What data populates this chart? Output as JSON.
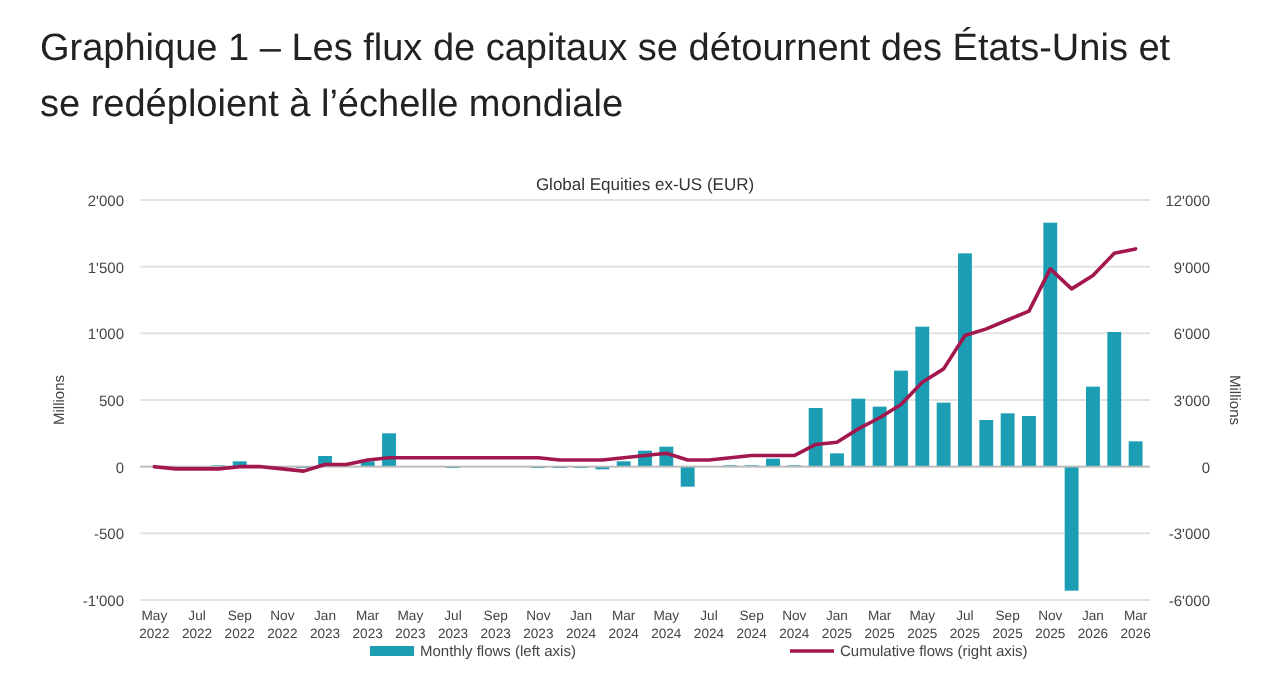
{
  "chart_data": {
    "type": "bar",
    "title": "Graphique 1 – Les flux de capitaux se détournent des États-Unis et se redéploient à l’échelle mondiale",
    "subtitle": "Global Equities ex-US (EUR)",
    "ylabel": "Millions",
    "y2label": "Millions",
    "categories": [
      "May 2022",
      null,
      "Jul 2022",
      null,
      "Sep 2022",
      null,
      "Nov 2022",
      null,
      "Jan 2023",
      null,
      "Mar 2023",
      null,
      "May 2023",
      null,
      "Jul 2023",
      null,
      "Sep 2023",
      null,
      "Nov 2023",
      null,
      "Jan 2024",
      null,
      "Mar 2024",
      null,
      "May 2024",
      null,
      "Jul 2024",
      null,
      "Sep 2024",
      null,
      "Nov 2024",
      null,
      "Jan 2025",
      null,
      "Mar 2025",
      null,
      "May 2025",
      null,
      "Jul 2025",
      null,
      "Sep 2025",
      null,
      "Nov 2025",
      null,
      "Jan 2026",
      null,
      "Mar 2026"
    ],
    "series": [
      {
        "name": "Monthly flows (left axis)",
        "color": "#1b9db3",
        "values": [
          0,
          0,
          null,
          10,
          40,
          null,
          null,
          -10,
          80,
          null,
          40,
          250,
          0,
          0,
          -10,
          0,
          0,
          0,
          -10,
          -10,
          -10,
          -20,
          40,
          120,
          150,
          -150,
          0,
          10,
          10,
          60,
          10,
          440,
          100,
          510,
          450,
          720,
          1050,
          480,
          1600,
          350,
          400,
          380,
          1830,
          -930,
          600,
          1010,
          190
        ]
      },
      {
        "name": "Cumulative flows (right axis)",
        "type": "line",
        "axis": "y2",
        "color": "#a3174f",
        "values": [
          0,
          -100,
          -100,
          -100,
          0,
          0,
          -100,
          -200,
          100,
          100,
          300,
          400,
          400,
          400,
          400,
          400,
          400,
          400,
          400,
          300,
          300,
          300,
          400,
          500,
          600,
          300,
          300,
          400,
          500,
          500,
          500,
          1000,
          1100,
          1700,
          2200,
          2800,
          3800,
          4400,
          5900,
          6200,
          6600,
          7000,
          8900,
          8000,
          8600,
          9600,
          9800
        ]
      }
    ],
    "ylim": [
      -1000,
      2000
    ],
    "yticks": [
      {
        "value": -1000,
        "label": "-1'000"
      },
      -500,
      0,
      500,
      {
        "value": 1000,
        "label": "1'000"
      },
      {
        "value": 1500,
        "label": "1'500"
      },
      {
        "value": 2000,
        "label": "2'000"
      }
    ],
    "y2lim": [
      -6000,
      12000
    ],
    "y2ticks": [
      {
        "value": -6000,
        "label": "-6'000"
      },
      {
        "value": -3000,
        "label": "-3'000"
      },
      0,
      {
        "value": 3000,
        "label": "3'000"
      },
      {
        "value": 6000,
        "label": "6'000"
      },
      {
        "value": 9000,
        "label": "9'000"
      },
      {
        "value": 12000,
        "label": "12'000"
      }
    ],
    "grid": "y",
    "legend": "bottom"
  }
}
